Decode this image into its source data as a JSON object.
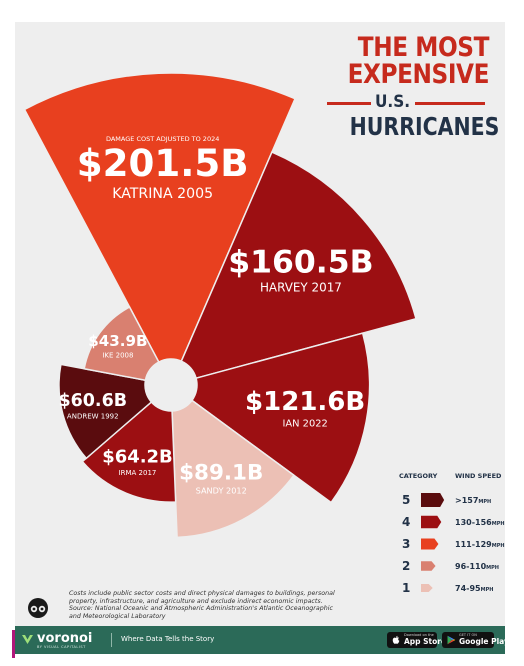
{
  "title": {
    "line1": "THE MOST",
    "line2": "EXPENSIVE",
    "line3": "U.S.",
    "line4": "HURRICANES"
  },
  "subtitle": "DAMAGE COST ADJUSTED TO 2024",
  "colors": {
    "cat5": "#5a0c0e",
    "cat4": "#9c0f12",
    "cat3": "#e8401f",
    "cat2": "#d98070",
    "cat1": "#ecc0b5",
    "title_red": "#c62a1d",
    "title_navy": "#223247",
    "footer_green": "#2b6a58"
  },
  "chart_data": {
    "type": "polar-area",
    "unit": "$ billions",
    "sectors": [
      {
        "name": "KATRINA",
        "year": "2005",
        "value": 201.5,
        "label": "$201.5B",
        "category": 3
      },
      {
        "name": "HARVEY",
        "year": "2017",
        "value": 160.5,
        "label": "$160.5B",
        "category": 4
      },
      {
        "name": "IAN",
        "year": "2022",
        "value": 121.6,
        "label": "$121.6B",
        "category": 4
      },
      {
        "name": "SANDY",
        "year": "2012",
        "value": 89.1,
        "label": "$89.1B",
        "category": 1
      },
      {
        "name": "IRMA",
        "year": "2017",
        "value": 64.2,
        "label": "$64.2B",
        "category": 4
      },
      {
        "name": "ANDREW",
        "year": "1992",
        "value": 60.6,
        "label": "$60.6B",
        "category": 5
      },
      {
        "name": "IKE",
        "year": "2008",
        "value": 43.9,
        "label": "$43.9B",
        "category": 2
      }
    ],
    "legend": {
      "header_category": "CATEGORY",
      "header_speed": "WIND SPEED",
      "items": [
        {
          "category": "5",
          "speed": ">157",
          "unit": "MPH"
        },
        {
          "category": "4",
          "speed": "130-156",
          "unit": "MPH"
        },
        {
          "category": "3",
          "speed": "111-129",
          "unit": "MPH"
        },
        {
          "category": "2",
          "speed": "96-110",
          "unit": "MPH"
        },
        {
          "category": "1",
          "speed": "74-95",
          "unit": "MPH"
        }
      ]
    }
  },
  "footnote": {
    "line1": "Costs include public sector costs and direct physical damages to buildings, personal",
    "line2": "property, infrastructure, and agriculture and exclude indirect economic impacts.",
    "line3": "Source: National Oceanic and Atmospheric Administration's Atlantic Oceanographic",
    "line4": "and Meteorological Laboratory"
  },
  "footer": {
    "brand": "voronoi",
    "brand_sub": "BY VISUAL CAPITALIST",
    "tagline": "Where Data Tells the Story",
    "appstore_small": "Download on the",
    "appstore_big": "App Store",
    "googleplay_small": "GET IT ON",
    "googleplay_big": "Google Play"
  }
}
